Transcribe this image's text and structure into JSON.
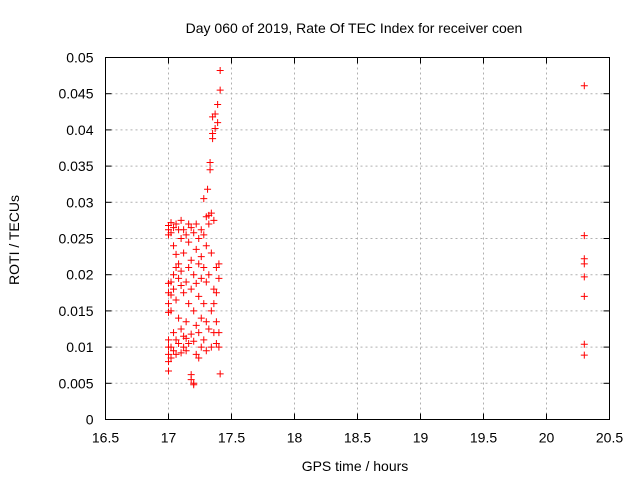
{
  "chart_data": {
    "type": "scatter",
    "title": "Day 060 of 2019, Rate Of TEC Index for receiver coen",
    "xlabel": "GPS time / hours",
    "ylabel": "ROTI / TECUs",
    "xlim": [
      16.5,
      20.5
    ],
    "ylim": [
      0,
      0.05
    ],
    "xticks": [
      16.5,
      17,
      17.5,
      18,
      18.5,
      19,
      19.5,
      20,
      20.5
    ],
    "xtick_labels": [
      "16.5",
      "17",
      "17.5",
      "18",
      "18.5",
      "19",
      "19.5",
      "20",
      "20.5"
    ],
    "yticks": [
      0,
      0.005,
      0.01,
      0.015,
      0.02,
      0.025,
      0.03,
      0.035,
      0.04,
      0.045,
      0.05
    ],
    "ytick_labels": [
      "0",
      "0.005",
      "0.01",
      "0.015",
      "0.02",
      "0.025",
      "0.03",
      "0.035",
      "0.04",
      "0.045",
      "0.05"
    ],
    "grid": true,
    "marker": "+",
    "color": "#ff0000",
    "series": [
      {
        "name": "ROTI",
        "points": [
          [
            17.0,
            0.0268
          ],
          [
            17.0,
            0.0262
          ],
          [
            17.0,
            0.0255
          ],
          [
            17.0,
            0.0188
          ],
          [
            17.0,
            0.0175
          ],
          [
            17.0,
            0.016
          ],
          [
            17.0,
            0.0148
          ],
          [
            17.0,
            0.011
          ],
          [
            17.0,
            0.01
          ],
          [
            17.0,
            0.009
          ],
          [
            17.0,
            0.008
          ],
          [
            17.0,
            0.0067
          ],
          [
            17.02,
            0.0272
          ],
          [
            17.02,
            0.0258
          ],
          [
            17.02,
            0.019
          ],
          [
            17.02,
            0.0172
          ],
          [
            17.02,
            0.015
          ],
          [
            17.02,
            0.01
          ],
          [
            17.02,
            0.0085
          ],
          [
            17.04,
            0.0265
          ],
          [
            17.04,
            0.024
          ],
          [
            17.04,
            0.02
          ],
          [
            17.04,
            0.018
          ],
          [
            17.04,
            0.012
          ],
          [
            17.04,
            0.0095
          ],
          [
            17.06,
            0.027
          ],
          [
            17.06,
            0.0228
          ],
          [
            17.06,
            0.021
          ],
          [
            17.06,
            0.0165
          ],
          [
            17.06,
            0.011
          ],
          [
            17.06,
            0.009
          ],
          [
            17.08,
            0.0262
          ],
          [
            17.08,
            0.0215
          ],
          [
            17.08,
            0.0195
          ],
          [
            17.08,
            0.014
          ],
          [
            17.08,
            0.0105
          ],
          [
            17.1,
            0.0275
          ],
          [
            17.1,
            0.025
          ],
          [
            17.1,
            0.0205
          ],
          [
            17.1,
            0.0185
          ],
          [
            17.1,
            0.0125
          ],
          [
            17.1,
            0.0092
          ],
          [
            17.12,
            0.0262
          ],
          [
            17.12,
            0.023
          ],
          [
            17.12,
            0.0175
          ],
          [
            17.12,
            0.0115
          ],
          [
            17.12,
            0.01
          ],
          [
            17.14,
            0.0255
          ],
          [
            17.14,
            0.019
          ],
          [
            17.14,
            0.0135
          ],
          [
            17.14,
            0.0112
          ],
          [
            17.14,
            0.0095
          ],
          [
            17.16,
            0.027
          ],
          [
            17.16,
            0.0245
          ],
          [
            17.16,
            0.021
          ],
          [
            17.16,
            0.016
          ],
          [
            17.16,
            0.0105
          ],
          [
            17.18,
            0.0265
          ],
          [
            17.18,
            0.022
          ],
          [
            17.18,
            0.018
          ],
          [
            17.18,
            0.0118
          ],
          [
            17.18,
            0.0062
          ],
          [
            17.18,
            0.0055
          ],
          [
            17.2,
            0.0258
          ],
          [
            17.2,
            0.02
          ],
          [
            17.2,
            0.015
          ],
          [
            17.2,
            0.0108
          ],
          [
            17.2,
            0.005
          ],
          [
            17.2,
            0.0048
          ],
          [
            17.22,
            0.027
          ],
          [
            17.22,
            0.0235
          ],
          [
            17.22,
            0.0188
          ],
          [
            17.22,
            0.013
          ],
          [
            17.22,
            0.009
          ],
          [
            17.24,
            0.025
          ],
          [
            17.24,
            0.0215
          ],
          [
            17.24,
            0.017
          ],
          [
            17.24,
            0.012
          ],
          [
            17.24,
            0.0085
          ],
          [
            17.26,
            0.0262
          ],
          [
            17.26,
            0.0225
          ],
          [
            17.26,
            0.0195
          ],
          [
            17.26,
            0.014
          ],
          [
            17.26,
            0.01
          ],
          [
            17.28,
            0.0305
          ],
          [
            17.28,
            0.0255
          ],
          [
            17.28,
            0.021
          ],
          [
            17.28,
            0.016
          ],
          [
            17.28,
            0.011
          ],
          [
            17.3,
            0.028
          ],
          [
            17.3,
            0.024
          ],
          [
            17.3,
            0.019
          ],
          [
            17.3,
            0.0135
          ],
          [
            17.3,
            0.0095
          ],
          [
            17.31,
            0.0318
          ],
          [
            17.32,
            0.0282
          ],
          [
            17.32,
            0.027
          ],
          [
            17.32,
            0.02
          ],
          [
            17.32,
            0.0125
          ],
          [
            17.33,
            0.0355
          ],
          [
            17.33,
            0.0345
          ],
          [
            17.34,
            0.0285
          ],
          [
            17.34,
            0.023
          ],
          [
            17.34,
            0.015
          ],
          [
            17.34,
            0.01
          ],
          [
            17.35,
            0.0418
          ],
          [
            17.35,
            0.0395
          ],
          [
            17.35,
            0.0388
          ],
          [
            17.36,
            0.0275
          ],
          [
            17.36,
            0.018
          ],
          [
            17.36,
            0.016
          ],
          [
            17.36,
            0.012
          ],
          [
            17.37,
            0.0422
          ],
          [
            17.37,
            0.0402
          ],
          [
            17.38,
            0.021
          ],
          [
            17.38,
            0.0175
          ],
          [
            17.38,
            0.0135
          ],
          [
            17.38,
            0.0105
          ],
          [
            17.39,
            0.0435
          ],
          [
            17.39,
            0.041
          ],
          [
            17.4,
            0.0215
          ],
          [
            17.4,
            0.0195
          ],
          [
            17.4,
            0.012
          ],
          [
            17.4,
            0.01
          ],
          [
            17.41,
            0.0482
          ],
          [
            17.41,
            0.0455
          ],
          [
            17.41,
            0.0063
          ],
          [
            20.3,
            0.0461
          ],
          [
            20.3,
            0.0254
          ],
          [
            20.3,
            0.0222
          ],
          [
            20.3,
            0.0215
          ],
          [
            20.3,
            0.0197
          ],
          [
            20.3,
            0.017
          ],
          [
            20.3,
            0.0104
          ],
          [
            20.3,
            0.0089
          ]
        ]
      }
    ]
  }
}
